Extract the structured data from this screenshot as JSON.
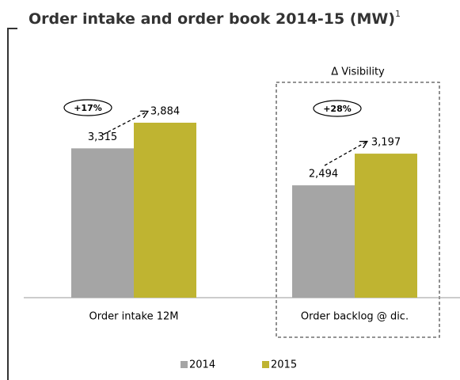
{
  "chart_data": {
    "type": "bar",
    "title": "Order intake and order book 2014-15 (MW)",
    "title_superscript": "1",
    "categories": [
      "Order intake 12M",
      "Order backlog @ dic."
    ],
    "series": [
      {
        "name": "2014",
        "color": "#a5a5a5",
        "values": [
          3315,
          2494
        ],
        "value_labels": [
          "3,315",
          "2,494"
        ]
      },
      {
        "name": "2015",
        "color": "#bfb431",
        "values": [
          3884,
          3197
        ],
        "value_labels": [
          "3,884",
          "3,197"
        ]
      }
    ],
    "annotations": [
      "+17%",
      "+28%",
      "Δ Visibility"
    ]
  }
}
